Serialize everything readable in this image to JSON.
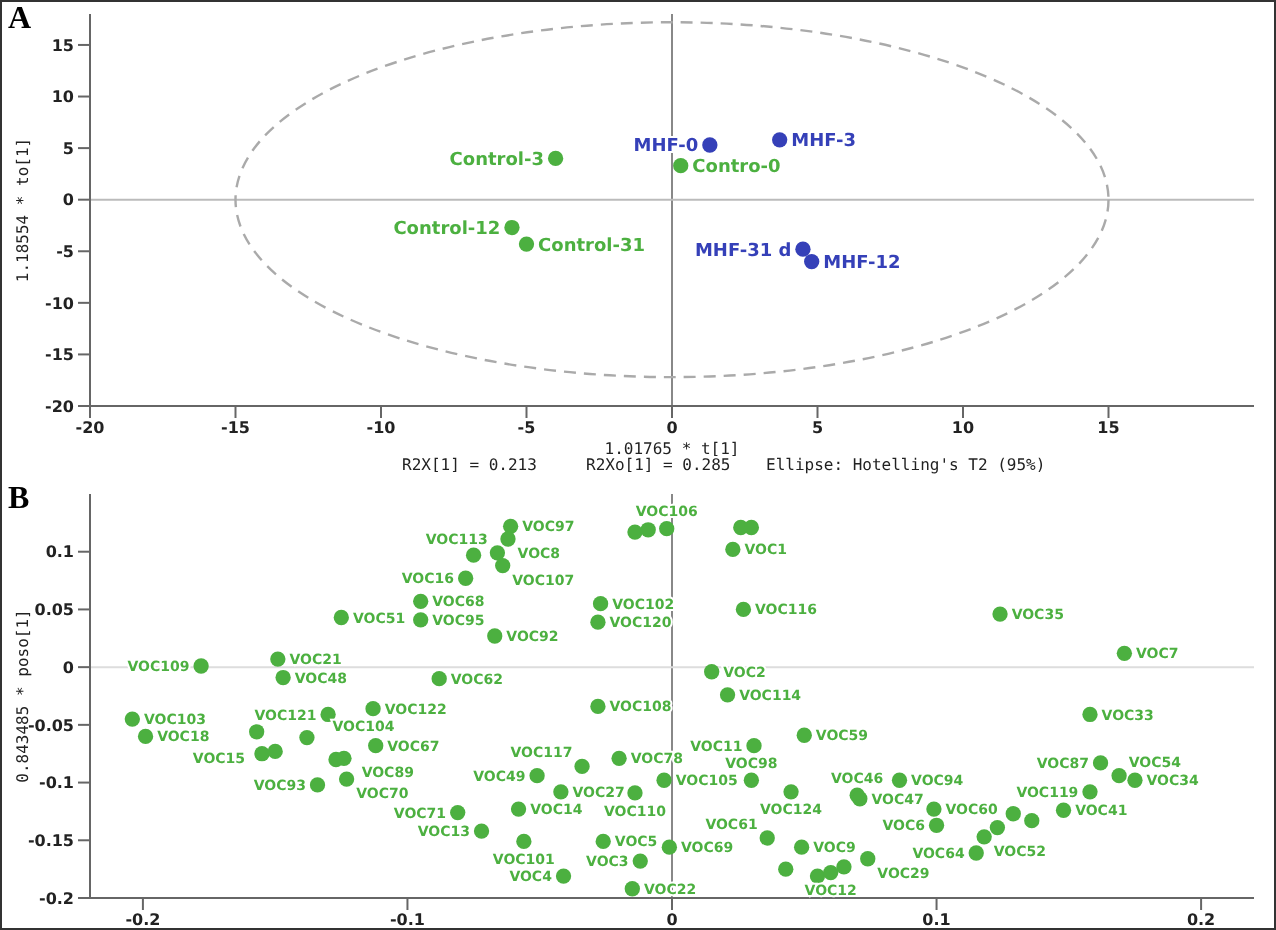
{
  "chart_data": [
    {
      "type": "scatter",
      "title": "A",
      "xlabel": "1.01765 * t[1]",
      "ylabel": "1.18554 * to[1]",
      "xlim": [
        -20,
        20
      ],
      "ylim": [
        -20,
        18
      ],
      "xticks": [
        -20,
        -15,
        -10,
        -5,
        0,
        5,
        10,
        15
      ],
      "yticks": [
        -20,
        -15,
        -10,
        -5,
        0,
        5,
        10,
        15
      ],
      "marker": "circle",
      "grid": false,
      "legend": false,
      "annotations": [
        "R2X[1] = 0.213",
        "R2Xo[1] = 0.285",
        "Ellipse: Hotelling's T2 (95%)"
      ],
      "ref_lines": [
        {
          "axis": "x",
          "value": 0,
          "color": "#888888"
        },
        {
          "axis": "y",
          "value": 0,
          "color": "#bbbbbb"
        }
      ],
      "series": [
        {
          "color": "#4cb040",
          "x": [
            -4,
            0.3,
            -5.5,
            -5
          ],
          "values": [
            4,
            3.3,
            -2.7,
            -4.3
          ],
          "value_labels": [
            "Control-3",
            "Contro-0",
            "Control-12",
            "Control-31"
          ]
        },
        {
          "color": "#3540b8",
          "x": [
            1.3,
            3.7,
            4.8,
            4.5
          ],
          "values": [
            5.3,
            5.8,
            -6,
            -4.8
          ],
          "value_labels": [
            "MHF-0",
            "MHF-3",
            "MHF-12",
            "MHF-31 d"
          ]
        }
      ]
    },
    {
      "type": "scatter",
      "title": "B",
      "ylabel": "0.843485 * poso[1]",
      "xlim": [
        -0.22,
        0.22
      ],
      "ylim": [
        -0.2,
        0.15
      ],
      "xticks": [
        -0.2,
        -0.1,
        0,
        0.1,
        0.2
      ],
      "yticks": [
        -0.2,
        -0.15,
        -0.1,
        -0.05,
        0,
        0.05,
        0.1
      ],
      "marker": "circle",
      "grid": false,
      "legend": false,
      "ref_lines": [
        {
          "axis": "x",
          "value": 0,
          "color": "#888888"
        },
        {
          "axis": "y",
          "value": 0,
          "color": "#dddddd"
        }
      ],
      "series": [
        {
          "color": "#4cb040",
          "x": [
            -0.204,
            -0.199,
            -0.178,
            -0.149,
            -0.147,
            -0.125,
            -0.113,
            -0.13,
            -0.157,
            -0.138,
            -0.112,
            -0.155,
            -0.15,
            -0.127,
            -0.124,
            -0.123,
            -0.134,
            -0.081,
            -0.095,
            -0.095,
            -0.088,
            -0.061,
            -0.062,
            -0.066,
            -0.075,
            -0.064,
            -0.078,
            -0.027,
            -0.028,
            -0.067,
            -0.028,
            -0.02,
            -0.034,
            -0.051,
            -0.042,
            -0.014,
            -0.003,
            -0.058,
            -0.072,
            -0.056,
            -0.026,
            -0.001,
            -0.012,
            -0.041,
            -0.015,
            -0.014,
            -0.009,
            -0.002,
            0.026,
            0.03,
            0.023,
            0.027,
            0.015,
            0.021,
            0.05,
            0.031,
            0.03,
            0.045,
            0.036,
            0.049,
            0.043,
            0.055,
            0.124,
            0.171,
            0.158,
            0.162,
            0.169,
            0.175,
            0.158,
            0.148,
            0.086,
            0.07,
            0.071,
            0.099,
            0.1,
            0.118,
            0.115,
            0.129,
            0.123,
            0.136,
            0.074,
            0.065,
            0.06
          ],
          "values": [
            -0.045,
            -0.06,
            0.001,
            0.007,
            -0.009,
            0.043,
            -0.036,
            -0.041,
            -0.056,
            -0.061,
            -0.068,
            -0.075,
            -0.073,
            -0.08,
            -0.079,
            -0.097,
            -0.102,
            -0.126,
            0.057,
            0.041,
            -0.01,
            0.122,
            0.111,
            0.099,
            0.097,
            0.088,
            0.077,
            0.055,
            0.039,
            0.027,
            -0.034,
            -0.079,
            -0.086,
            -0.094,
            -0.108,
            -0.109,
            -0.098,
            -0.123,
            -0.142,
            -0.151,
            -0.151,
            -0.156,
            -0.168,
            -0.181,
            -0.192,
            0.117,
            0.119,
            0.12,
            0.121,
            0.121,
            0.102,
            0.05,
            -0.004,
            -0.024,
            -0.059,
            -0.068,
            -0.098,
            -0.108,
            -0.148,
            -0.156,
            -0.175,
            -0.181,
            0.046,
            0.012,
            -0.041,
            -0.083,
            -0.094,
            -0.098,
            -0.108,
            -0.124,
            -0.098,
            -0.111,
            -0.114,
            -0.123,
            -0.137,
            -0.147,
            -0.161,
            -0.127,
            -0.139,
            -0.133,
            -0.166,
            -0.173,
            -0.178
          ],
          "value_labels": [
            "VOC103",
            "VOC18",
            "VOC109",
            "VOC21",
            "VOC48",
            "VOC51",
            "VOC122",
            "VOC121",
            "VOC15",
            "VOC104",
            "VOC67",
            null,
            null,
            "VOC89",
            null,
            "VOC70",
            "VOC93",
            "VOC71",
            "VOC68",
            "VOC95",
            "VOC62",
            "VOC97",
            "VOC8",
            "VOC113",
            null,
            "VOC107",
            "VOC16",
            "VOC102",
            "VOC120",
            "VOC92",
            "VOC108",
            "VOC78",
            "VOC117",
            "VOC49",
            "VOC27",
            "VOC110",
            "VOC105",
            "VOC14",
            "VOC13",
            "VOC101",
            "VOC5",
            "VOC69",
            "VOC3",
            "VOC4",
            "VOC22",
            null,
            null,
            "VOC106",
            null,
            null,
            "VOC1",
            "VOC116",
            "VOC2",
            "VOC114",
            "VOC59",
            "VOC11",
            "VOC98",
            "VOC124",
            "VOC61",
            "VOC9",
            null,
            null,
            "VOC35",
            "VOC7",
            "VOC33",
            "VOC87",
            "VOC54",
            "VOC34",
            "VOC119",
            "VOC41",
            "VOC94",
            "VOC46",
            "VOC47",
            "VOC60",
            "VOC6",
            "VOC52",
            "VOC64",
            null,
            null,
            null,
            "VOC29",
            null,
            "VOC12"
          ]
        }
      ]
    }
  ]
}
